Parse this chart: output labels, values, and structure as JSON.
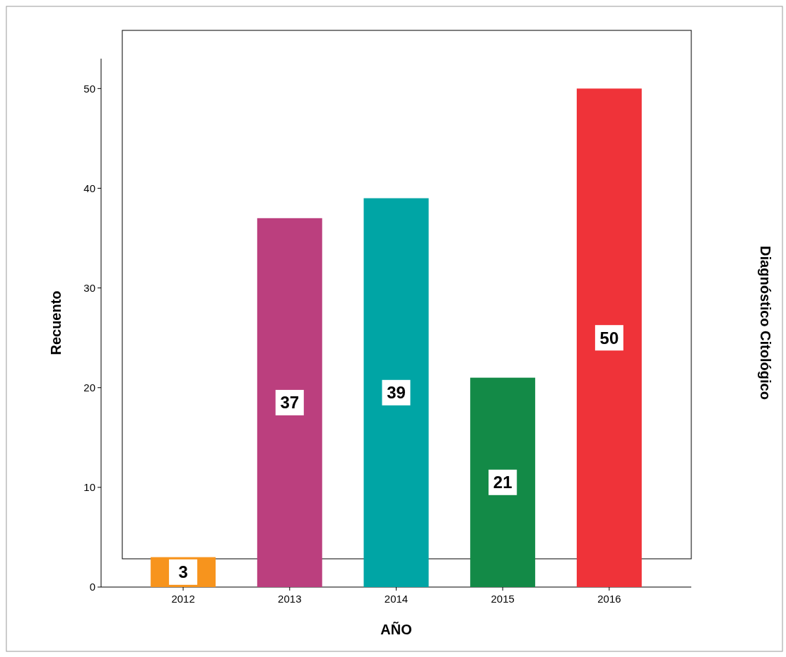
{
  "chart_data": {
    "type": "bar",
    "xlabel": "AÑO",
    "ylabel": "Recuento",
    "annotations": [
      "Diagnóstico Citológico"
    ],
    "categories": [
      "2012",
      "2013",
      "2014",
      "2015",
      "2016"
    ],
    "values": [
      3,
      37,
      39,
      21,
      50
    ],
    "colors": [
      "#f7941d",
      "#bb3f7e",
      "#00a5a5",
      "#138a47",
      "#ef3339"
    ],
    "ylim": [
      0,
      53
    ],
    "yticks": [
      0,
      10,
      20,
      30,
      40,
      50
    ],
    "data_labels": true
  }
}
